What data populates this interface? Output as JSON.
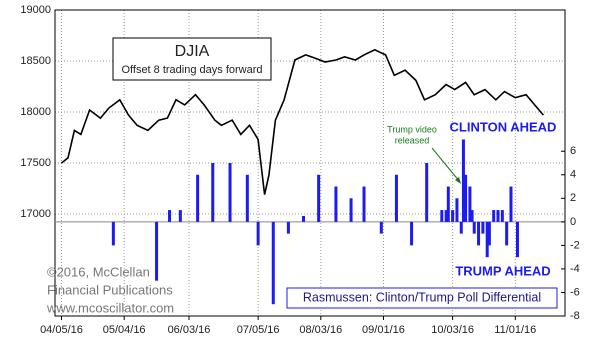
{
  "chart_data": {
    "type": "combo",
    "xlim": [
      "04/02/16",
      "11/24/16"
    ],
    "xticks": [
      "04/05/16",
      "05/04/16",
      "06/03/16",
      "07/05/16",
      "08/03/16",
      "09/01/16",
      "10/03/16",
      "11/01/16"
    ],
    "ylim": [
      16000,
      19000
    ],
    "yticks": [
      17000,
      17500,
      18000,
      18500,
      19000
    ],
    "y2lim": [
      -8,
      18
    ],
    "y2ticks": [
      -8,
      -6,
      -4,
      -2,
      0,
      2,
      4,
      6
    ],
    "grid": true,
    "subtitle": "Offset 8 trading days forward",
    "annotations": {
      "clinton": "CLINTON AHEAD",
      "trump": "TRUMP AHEAD",
      "video": [
        "Trump video",
        "released"
      ],
      "copyright": [
        "©2016, McClellan",
        "Financial Publications",
        "www.mcoscillator.com"
      ]
    },
    "series": [
      {
        "name": "DJIA",
        "type": "line",
        "color": "#000000",
        "x": [
          "04/05/16",
          "04/08/16",
          "04/11/16",
          "04/14/16",
          "04/18/16",
          "04/23/16",
          "04/27/16",
          "05/02/16",
          "05/06/16",
          "05/10/16",
          "05/15/16",
          "05/20/16",
          "05/24/16",
          "05/28/16",
          "06/01/16",
          "06/06/16",
          "06/10/16",
          "06/15/16",
          "06/18/16",
          "06/23/16",
          "06/27/16",
          "07/01/16",
          "07/05/16",
          "07/08/16",
          "07/10/16",
          "07/13/16",
          "07/17/16",
          "07/22/16",
          "07/27/16",
          "07/31/16",
          "08/05/16",
          "08/10/16",
          "08/14/16",
          "08/19/16",
          "08/23/16",
          "08/28/16",
          "09/02/16",
          "09/06/16",
          "09/11/16",
          "09/16/16",
          "09/20/16",
          "09/25/16",
          "09/30/16",
          "10/04/16",
          "10/09/16",
          "10/13/16",
          "10/18/16",
          "10/23/16",
          "10/27/16",
          "11/01/16",
          "11/06/16",
          "11/10/16",
          "11/14/16"
        ],
        "values": [
          17500,
          17550,
          17820,
          17780,
          18020,
          17940,
          18040,
          18120,
          17970,
          17870,
          17820,
          17920,
          17940,
          18120,
          18070,
          18170,
          18070,
          17920,
          17870,
          17920,
          17780,
          17870,
          17730,
          17190,
          17380,
          17920,
          18120,
          18510,
          18560,
          18530,
          18490,
          18510,
          18540,
          18510,
          18560,
          18610,
          18560,
          18360,
          18410,
          18310,
          18120,
          18170,
          18270,
          18220,
          18290,
          18170,
          18220,
          18120,
          18200,
          18140,
          18170,
          18070,
          17970
        ]
      },
      {
        "name": "Rasmussen: Clinton/Trump Poll Differential",
        "type": "bar",
        "axis": "y2",
        "color": "#1c1cf0",
        "x": [
          "04/29/16",
          "05/19/16",
          "05/25/16",
          "05/30/16",
          "06/07/16",
          "06/14/16",
          "06/22/16",
          "06/30/16",
          "07/05/16",
          "07/12/16",
          "07/19/16",
          "07/26/16",
          "08/02/16",
          "08/10/16",
          "08/17/16",
          "08/23/16",
          "08/31/16",
          "09/07/16",
          "09/14/16",
          "09/21/16",
          "09/28/16",
          "09/30/16",
          "10/01/16",
          "10/03/16",
          "10/05/16",
          "10/07/16",
          "10/08/16",
          "10/09/16",
          "10/11/16",
          "10/12/16",
          "10/13/16",
          "10/15/16",
          "10/17/16",
          "10/19/16",
          "10/20/16",
          "10/22/16",
          "10/24/16",
          "10/26/16",
          "10/28/16",
          "10/30/16",
          "11/02/16"
        ],
        "values": [
          -2,
          -5,
          1,
          1,
          4,
          5,
          5,
          4,
          -2,
          -7,
          -1,
          0.5,
          4,
          3,
          2,
          3,
          -1,
          4,
          -2,
          5,
          1,
          1,
          3,
          1,
          2,
          -1,
          7,
          4,
          3,
          1,
          -1,
          -2,
          -1,
          -3,
          -2,
          1,
          1,
          1,
          -2,
          3,
          -3
        ]
      }
    ]
  }
}
